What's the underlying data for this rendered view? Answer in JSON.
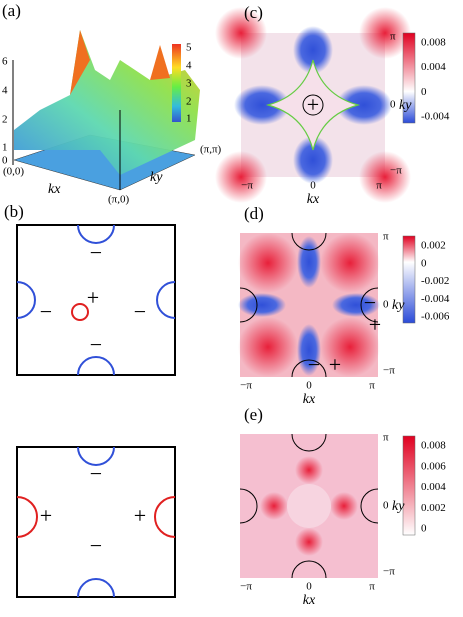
{
  "panels": [
    {
      "label": "(a)",
      "z_ticks": [
        "6",
        "4",
        "2",
        "1",
        "0"
      ],
      "colorbar_ticks": [
        "5",
        "4",
        "3",
        "2",
        "1"
      ],
      "corner_labels": [
        "(0,0)",
        "(π,π)",
        "(π,0)"
      ],
      "x_label": "kx",
      "y_label": "ky"
    },
    {
      "label": "(b)",
      "signs_top": [
        "−",
        "+",
        "−",
        "−",
        "−"
      ],
      "signs_bottom": [
        "−",
        "+",
        "+",
        "−"
      ]
    },
    {
      "label": "(c)",
      "x_ticks": [
        "−π",
        "0",
        "π"
      ],
      "y_ticks": [
        "π",
        "0",
        "−π"
      ],
      "x_label": "kx",
      "y_label": "ky",
      "colorbar_ticks": [
        "0.008",
        "0.004",
        "0",
        "-0.004"
      ],
      "signs": [
        "+"
      ]
    },
    {
      "label": "(d)",
      "x_ticks": [
        "−π",
        "0",
        "π"
      ],
      "y_ticks": [
        "π",
        "0",
        "−π"
      ],
      "x_label": "kx",
      "y_label": "ky",
      "colorbar_ticks": [
        "0.002",
        "0",
        "-0.002",
        "-0.004",
        "-0.006"
      ],
      "signs": [
        "−",
        "+",
        "−",
        "+"
      ]
    },
    {
      "label": "(e)",
      "x_ticks": [
        "−π",
        "0",
        "π"
      ],
      "y_ticks": [
        "π",
        "0",
        "−π"
      ],
      "x_label": "kx",
      "y_label": "ky",
      "colorbar_ticks": [
        "0.008",
        "0.006",
        "0.004",
        "0.002",
        "0"
      ]
    }
  ]
}
